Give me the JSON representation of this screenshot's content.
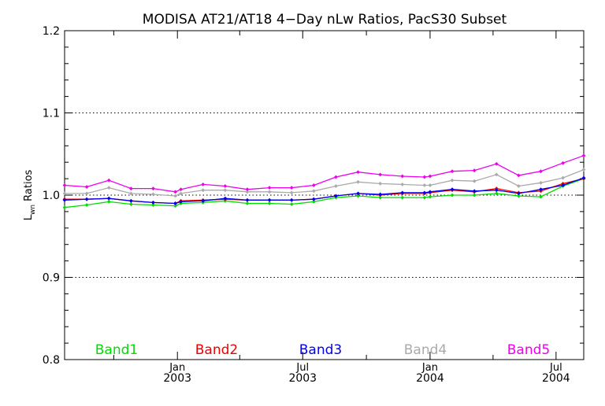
{
  "chart_data": {
    "type": "line",
    "title": "MODISA AT21/AT18 4−Day nLw Ratios, PacS30 Subset",
    "ylabel_main": "L",
    "ylabel_sub": "wn",
    "ylabel_tail": " Ratios",
    "xlabel": "",
    "ylim": [
      0.8,
      1.2
    ],
    "xlim": [
      "2002-07-22",
      "2004-08-10"
    ],
    "y_ticks": [
      0.8,
      0.9,
      1.0,
      1.1,
      1.2
    ],
    "y_tick_labels": [
      "0.8",
      "0.9",
      "1.0",
      "1.1",
      "1.2"
    ],
    "y_gridlines": [
      0.9,
      1.0,
      1.1
    ],
    "reference_line": 1.0,
    "x_ticks_major": [
      {
        "date": "2003-01-01",
        "label_top": "Jan",
        "label_bottom": "2003"
      },
      {
        "date": "2003-07-01",
        "label_top": "Jul",
        "label_bottom": "2003"
      },
      {
        "date": "2004-01-01",
        "label_top": "Jan",
        "label_bottom": "2004"
      },
      {
        "date": "2004-07-01",
        "label_top": "Jul",
        "label_bottom": "2004"
      }
    ],
    "x_ticks_minor": [
      "2002-10-01",
      "2003-04-01",
      "2003-10-01",
      "2004-04-01"
    ],
    "x": [
      "2002-07-22",
      "2002-08-23",
      "2002-09-24",
      "2002-10-26",
      "2002-11-27",
      "2002-12-29",
      "2003-01-06",
      "2003-02-07",
      "2003-03-11",
      "2003-04-12",
      "2003-05-14",
      "2003-06-15",
      "2003-07-17",
      "2003-08-18",
      "2003-09-19",
      "2003-10-21",
      "2003-11-22",
      "2003-12-24",
      "2004-01-01",
      "2004-02-02",
      "2004-03-05",
      "2004-04-06",
      "2004-05-08",
      "2004-06-09",
      "2004-07-11",
      "2004-08-10"
    ],
    "series": [
      {
        "name": "Band1",
        "color": "#00dd00",
        "values": [
          0.985,
          0.988,
          0.992,
          0.989,
          0.988,
          0.987,
          0.99,
          0.991,
          0.993,
          0.99,
          0.99,
          0.989,
          0.992,
          0.997,
          0.999,
          0.997,
          0.997,
          0.997,
          0.998,
          1.0,
          1.0,
          1.002,
          0.999,
          0.998,
          1.011,
          1.02
        ]
      },
      {
        "name": "Band2",
        "color": "#ee0000",
        "values": [
          0.995,
          0.995,
          0.996,
          0.993,
          0.991,
          0.99,
          0.993,
          0.994,
          0.995,
          0.994,
          0.994,
          0.994,
          0.995,
          0.999,
          1.002,
          1.0,
          1.002,
          1.002,
          1.003,
          1.006,
          1.004,
          1.008,
          1.003,
          1.005,
          1.014,
          1.02
        ]
      },
      {
        "name": "Band3",
        "color": "#0000ee",
        "values": [
          0.994,
          0.995,
          0.996,
          0.993,
          0.991,
          0.99,
          0.992,
          0.993,
          0.996,
          0.994,
          0.994,
          0.994,
          0.995,
          0.999,
          1.002,
          1.001,
          1.003,
          1.003,
          1.004,
          1.007,
          1.005,
          1.006,
          1.002,
          1.007,
          1.012,
          1.021
        ]
      },
      {
        "name": "Band4",
        "color": "#aaaaaa",
        "values": [
          1.002,
          1.002,
          1.009,
          1.002,
          1.001,
          0.999,
          1.002,
          1.006,
          1.006,
          1.004,
          1.004,
          1.003,
          1.005,
          1.011,
          1.016,
          1.014,
          1.013,
          1.012,
          1.012,
          1.018,
          1.017,
          1.025,
          1.011,
          1.015,
          1.021,
          1.031
        ]
      },
      {
        "name": "Band5",
        "color": "#ee00ee",
        "values": [
          1.012,
          1.01,
          1.018,
          1.008,
          1.008,
          1.004,
          1.007,
          1.013,
          1.011,
          1.007,
          1.009,
          1.009,
          1.012,
          1.022,
          1.028,
          1.025,
          1.023,
          1.022,
          1.023,
          1.029,
          1.03,
          1.038,
          1.024,
          1.029,
          1.039,
          1.048
        ]
      }
    ]
  }
}
